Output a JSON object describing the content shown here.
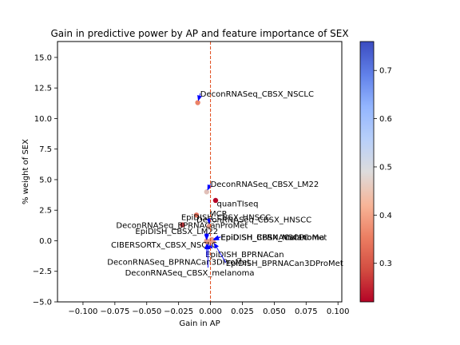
{
  "chart_data": {
    "type": "scatter",
    "title": "Gain in predictive power by AP and feature importance of SEX",
    "xlabel": "Gain in AP",
    "ylabel": "% weight of SEX",
    "xlim": [
      -0.12,
      0.103
    ],
    "ylim": [
      -5.0,
      16.3
    ],
    "xticks": [
      -0.1,
      -0.075,
      -0.05,
      -0.025,
      0.0,
      0.025,
      0.05,
      0.075,
      0.1
    ],
    "xtick_labels": [
      "−0.100",
      "−0.075",
      "−0.050",
      "−0.025",
      "0.000",
      "0.025",
      "0.050",
      "0.075",
      "0.100"
    ],
    "yticks": [
      -5.0,
      -2.5,
      0.0,
      2.5,
      5.0,
      7.5,
      10.0,
      12.5,
      15.0
    ],
    "ytick_labels": [
      "−5.0",
      "−2.5",
      "0.0",
      "2.5",
      "5.0",
      "7.5",
      "10.0",
      "12.5",
      "15.0"
    ],
    "reference_line_x": 0.0,
    "colorbar": {
      "colormap": "coolwarm_r",
      "range": [
        0.22,
        0.76
      ],
      "ticks": [
        0.3,
        0.4,
        0.5,
        0.6,
        0.7
      ],
      "tick_labels": [
        "0.3",
        "0.4",
        "0.5",
        "0.6",
        "0.7"
      ]
    },
    "points": [
      {
        "label": "DeconRNASeq_CBSX_NSCLC",
        "x": -0.01,
        "y": 11.3,
        "c": 0.36,
        "tx": -0.008,
        "ty": 11.8
      },
      {
        "label": "DeconRNASeq_CBSX_LM22",
        "x": -0.003,
        "y": 4.0,
        "c": 0.45,
        "tx": 0.0,
        "ty": 4.4
      },
      {
        "label": "quanTIseq",
        "x": 0.004,
        "y": 3.3,
        "c": 0.22,
        "tx": 0.005,
        "ty": 2.8
      },
      {
        "label": "DeconRNASeq_CBSX_HNSCC",
        "x": -0.011,
        "y": 2.1,
        "c": 0.34,
        "tx": -0.011,
        "ty": 1.5
      },
      {
        "label": "EpiDISH_CBSX_HNSCC",
        "x": -0.022,
        "y": 1.3,
        "c": 0.28,
        "tx": -0.023,
        "ty": 1.7
      },
      {
        "label": "MCP",
        "x": -0.001,
        "y": 1.2,
        "c": 0.4,
        "tx": -0.001,
        "ty": 2.0
      },
      {
        "label": "DeconRNASeq_BPRNACanProMet",
        "x": -0.003,
        "y": 0.0,
        "c": 0.4,
        "tx": -0.074,
        "ty": 1.05
      },
      {
        "label": "EpiDISH_CBSX_LM22",
        "x": -0.003,
        "y": -0.1,
        "c": 0.4,
        "tx": -0.059,
        "ty": 0.55
      },
      {
        "label": "EpiDISH_CBSX_NSCLC",
        "x": 0.001,
        "y": 0.1,
        "c": 0.4,
        "tx": 0.008,
        "ty": 0.05
      },
      {
        "label": "EpiDISH_CBSX_melanoma",
        "x": 0.001,
        "y": 0.05,
        "c": 0.4,
        "tx": 0.008,
        "ty": 0.05
      },
      {
        "label": "EpiDISH_BPRNACanProMet",
        "x": 0.001,
        "y": 0.0,
        "c": 0.4,
        "tx": 0.008,
        "ty": 0.05
      },
      {
        "label": "CIBERSORTx_CBSX_NSCLC",
        "x": -0.003,
        "y": -0.05,
        "c": 0.4,
        "tx": -0.078,
        "ty": -0.55
      },
      {
        "label": "EpiDISH_BPRNACan",
        "x": 0.0,
        "y": -0.05,
        "c": 0.4,
        "tx": -0.004,
        "ty": -1.35
      },
      {
        "label": "DeconRNASeq_BPRNACan3DProMet",
        "x": -0.003,
        "y": -0.1,
        "c": 0.4,
        "tx": -0.081,
        "ty": -1.95
      },
      {
        "label": "EpiDISH_BPRNACan3DProMet",
        "x": 0.002,
        "y": -0.05,
        "c": 0.4,
        "tx": 0.012,
        "ty": -2.05
      },
      {
        "label": "DeconRNASeq_CBSX_melanoma",
        "x": -0.002,
        "y": -0.1,
        "c": 0.4,
        "tx": -0.067,
        "ty": -2.85
      }
    ]
  }
}
